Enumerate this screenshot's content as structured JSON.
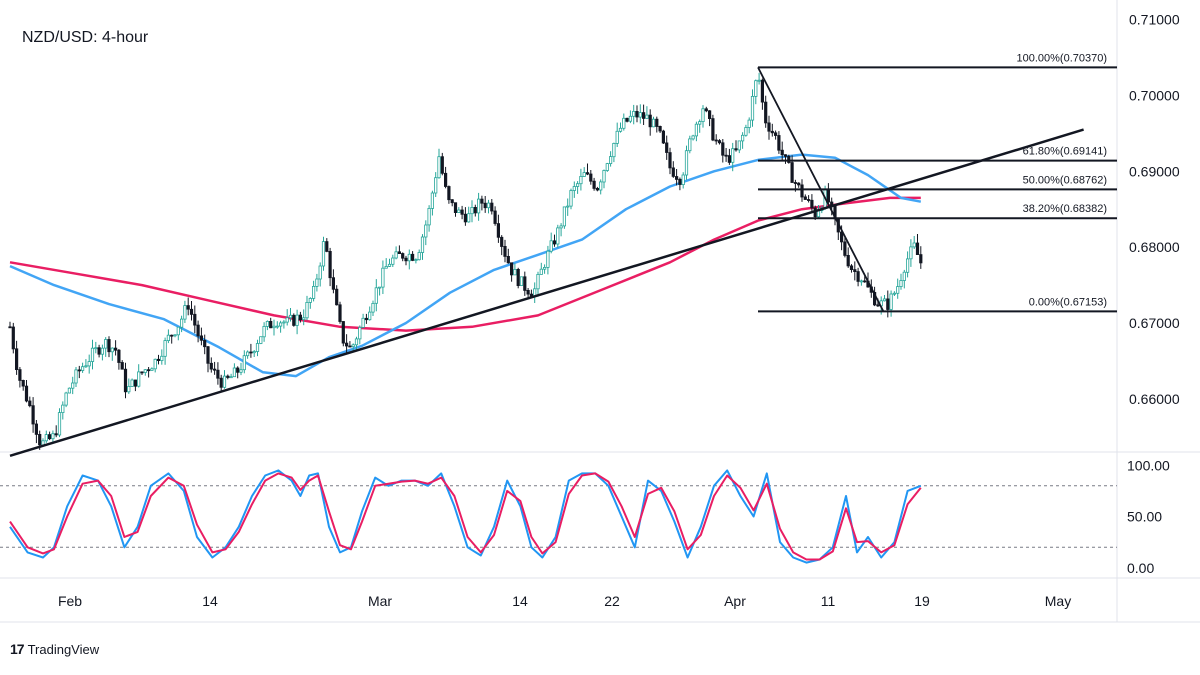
{
  "title": "NZD/USD: 4-hour",
  "brand": {
    "logo": "17",
    "name": "TradingView"
  },
  "colors": {
    "bull": "#26a69a",
    "bear": "#131722",
    "ma_fast": "#42a5f5",
    "ma_slow": "#e91e63",
    "stoch_k": "#2196f3",
    "stoch_d": "#e91e63",
    "trendline": "#131722",
    "grid_dash": "#787b86"
  },
  "chart_data": [
    {
      "type": "line",
      "title": "NZD/USD: 4-hour",
      "y_ticks": [
        "0.71000",
        "0.70000",
        "0.69000",
        "0.68000",
        "0.67000",
        "0.66000"
      ],
      "ylim": [
        0.653,
        0.711
      ],
      "x_ticks": [
        "Feb",
        "14",
        "Mar",
        "14",
        "22",
        "Apr",
        "11",
        "19",
        "May"
      ],
      "price_path": [
        [
          0,
          0.6695
        ],
        [
          4,
          0.663
        ],
        [
          9,
          0.659
        ],
        [
          14,
          0.654
        ],
        [
          20,
          0.655
        ],
        [
          26,
          0.661
        ],
        [
          32,
          0.664
        ],
        [
          38,
          0.666
        ],
        [
          43,
          0.6675
        ],
        [
          48,
          0.6665
        ],
        [
          53,
          0.661
        ],
        [
          60,
          0.6635
        ],
        [
          66,
          0.665
        ],
        [
          72,
          0.668
        ],
        [
          77,
          0.67
        ],
        [
          81,
          0.6725
        ],
        [
          86,
          0.668
        ],
        [
          91,
          0.664
        ],
        [
          97,
          0.662
        ],
        [
          103,
          0.6635
        ],
        [
          109,
          0.666
        ],
        [
          115,
          0.669
        ],
        [
          121,
          0.6705
        ],
        [
          126,
          0.67
        ],
        [
          133,
          0.671
        ],
        [
          138,
          0.674
        ],
        [
          143,
          0.681
        ],
        [
          147,
          0.674
        ],
        [
          151,
          0.668
        ],
        [
          155,
          0.6665
        ],
        [
          160,
          0.67
        ],
        [
          166,
          0.674
        ],
        [
          172,
          0.678
        ],
        [
          178,
          0.679
        ],
        [
          185,
          0.679
        ],
        [
          190,
          0.684
        ],
        [
          195,
          0.692
        ],
        [
          199,
          0.686
        ],
        [
          204,
          0.6845
        ],
        [
          209,
          0.684
        ],
        [
          214,
          0.686
        ],
        [
          219,
          0.6855
        ],
        [
          224,
          0.68
        ],
        [
          228,
          0.677
        ],
        [
          233,
          0.675
        ],
        [
          238,
          0.674
        ],
        [
          243,
          0.678
        ],
        [
          249,
          0.682
        ],
        [
          255,
          0.687
        ],
        [
          261,
          0.6895
        ],
        [
          267,
          0.688
        ],
        [
          272,
          0.692
        ],
        [
          278,
          0.696
        ],
        [
          284,
          0.6975
        ],
        [
          290,
          0.697
        ],
        [
          295,
          0.695
        ],
        [
          300,
          0.6905
        ],
        [
          305,
          0.689
        ],
        [
          310,
          0.695
        ],
        [
          315,
          0.6985
        ],
        [
          320,
          0.6945
        ],
        [
          325,
          0.6915
        ],
        [
          330,
          0.6925
        ],
        [
          335,
          0.696
        ],
        [
          340,
          0.703
        ],
        [
          343,
          0.697
        ],
        [
          348,
          0.6945
        ],
        [
          352,
          0.6915
        ],
        [
          357,
          0.6885
        ],
        [
          361,
          0.6865
        ],
        [
          366,
          0.6845
        ],
        [
          371,
          0.687
        ],
        [
          375,
          0.683
        ],
        [
          379,
          0.6795
        ],
        [
          383,
          0.677
        ],
        [
          387,
          0.676
        ],
        [
          391,
          0.674
        ],
        [
          395,
          0.6725
        ],
        [
          399,
          0.6725
        ],
        [
          403,
          0.6745
        ],
        [
          407,
          0.678
        ],
        [
          411,
          0.68
        ],
        [
          414,
          0.678
        ]
      ],
      "series": [
        {
          "name": "",
          "values": [
            [
              0,
              0.6775
            ],
            [
              20,
              0.675
            ],
            [
              45,
              0.6725
            ],
            [
              70,
              0.6705
            ],
            [
              95,
              0.6668
            ],
            [
              115,
              0.6635
            ],
            [
              130,
              0.663
            ],
            [
              145,
              0.6655
            ],
            [
              160,
              0.667
            ],
            [
              180,
              0.67
            ],
            [
              200,
              0.674
            ],
            [
              220,
              0.677
            ],
            [
              240,
              0.679
            ],
            [
              260,
              0.681
            ],
            [
              280,
              0.685
            ],
            [
              300,
              0.688
            ],
            [
              320,
              0.69
            ],
            [
              340,
              0.6915
            ],
            [
              360,
              0.6922
            ],
            [
              375,
              0.6918
            ],
            [
              390,
              0.6895
            ],
            [
              405,
              0.6865
            ],
            [
              414,
              0.686
            ]
          ]
        },
        {
          "name": "",
          "values": [
            [
              0,
              0.678
            ],
            [
              30,
              0.6765
            ],
            [
              60,
              0.675
            ],
            [
              90,
              0.673
            ],
            [
              120,
              0.671
            ],
            [
              150,
              0.6695
            ],
            [
              180,
              0.669
            ],
            [
              210,
              0.6695
            ],
            [
              240,
              0.671
            ],
            [
              270,
              0.6745
            ],
            [
              300,
              0.678
            ],
            [
              320,
              0.681
            ],
            [
              340,
              0.6835
            ],
            [
              360,
              0.685
            ],
            [
              380,
              0.6858
            ],
            [
              400,
              0.6865
            ],
            [
              414,
              0.6865
            ]
          ]
        }
      ],
      "trendlines": [
        {
          "from": [
            0,
            0.6525
          ],
          "to": [
            488,
            0.6955
          ]
        },
        {
          "from": [
            340,
            0.7037
          ],
          "to": [
            397,
            0.67153
          ]
        }
      ],
      "fibonacci": {
        "x_start": 340,
        "levels": [
          {
            "label": "100.00%(0.70370)",
            "price": 0.7037
          },
          {
            "label": "61.80%(0.69141)",
            "price": 0.69141
          },
          {
            "label": "50.00%(0.68762)",
            "price": 0.68762
          },
          {
            "label": "38.20%(0.68382)",
            "price": 0.68382
          },
          {
            "label": "0.00%(0.67153)",
            "price": 0.67153
          }
        ]
      }
    },
    {
      "type": "line",
      "title": "",
      "y_ticks": [
        "100.00",
        "50.00",
        "0.00"
      ],
      "ylim": [
        -10,
        110
      ],
      "levels": [
        80,
        20
      ],
      "stoch_k": [
        [
          0,
          40
        ],
        [
          8,
          15
        ],
        [
          15,
          10
        ],
        [
          20,
          20
        ],
        [
          26,
          60
        ],
        [
          33,
          90
        ],
        [
          40,
          85
        ],
        [
          46,
          60
        ],
        [
          52,
          20
        ],
        [
          58,
          40
        ],
        [
          64,
          80
        ],
        [
          72,
          92
        ],
        [
          79,
          75
        ],
        [
          85,
          30
        ],
        [
          92,
          10
        ],
        [
          98,
          20
        ],
        [
          104,
          40
        ],
        [
          110,
          70
        ],
        [
          116,
          90
        ],
        [
          122,
          95
        ],
        [
          128,
          85
        ],
        [
          132,
          70
        ],
        [
          136,
          90
        ],
        [
          140,
          92
        ],
        [
          145,
          40
        ],
        [
          150,
          15
        ],
        [
          155,
          20
        ],
        [
          160,
          55
        ],
        [
          166,
          88
        ],
        [
          172,
          80
        ],
        [
          178,
          85
        ],
        [
          184,
          85
        ],
        [
          190,
          80
        ],
        [
          196,
          92
        ],
        [
          202,
          60
        ],
        [
          208,
          20
        ],
        [
          214,
          12
        ],
        [
          220,
          40
        ],
        [
          226,
          85
        ],
        [
          232,
          60
        ],
        [
          237,
          20
        ],
        [
          242,
          10
        ],
        [
          248,
          30
        ],
        [
          254,
          85
        ],
        [
          260,
          92
        ],
        [
          266,
          92
        ],
        [
          272,
          80
        ],
        [
          278,
          50
        ],
        [
          284,
          20
        ],
        [
          290,
          85
        ],
        [
          296,
          75
        ],
        [
          302,
          45
        ],
        [
          308,
          10
        ],
        [
          314,
          40
        ],
        [
          320,
          80
        ],
        [
          326,
          95
        ],
        [
          332,
          70
        ],
        [
          338,
          50
        ],
        [
          344,
          92
        ],
        [
          350,
          25
        ],
        [
          356,
          10
        ],
        [
          362,
          5
        ],
        [
          368,
          8
        ],
        [
          374,
          20
        ],
        [
          380,
          70
        ],
        [
          385,
          15
        ],
        [
          390,
          30
        ],
        [
          396,
          10
        ],
        [
          402,
          25
        ],
        [
          408,
          75
        ],
        [
          414,
          80
        ]
      ],
      "stoch_d": [
        [
          0,
          45
        ],
        [
          8,
          20
        ],
        [
          15,
          14
        ],
        [
          20,
          18
        ],
        [
          26,
          50
        ],
        [
          33,
          82
        ],
        [
          40,
          85
        ],
        [
          46,
          70
        ],
        [
          52,
          30
        ],
        [
          58,
          35
        ],
        [
          64,
          70
        ],
        [
          72,
          88
        ],
        [
          79,
          80
        ],
        [
          85,
          42
        ],
        [
          92,
          15
        ],
        [
          98,
          18
        ],
        [
          104,
          35
        ],
        [
          110,
          62
        ],
        [
          116,
          85
        ],
        [
          122,
          92
        ],
        [
          128,
          88
        ],
        [
          132,
          76
        ],
        [
          136,
          85
        ],
        [
          140,
          90
        ],
        [
          145,
          55
        ],
        [
          150,
          22
        ],
        [
          155,
          18
        ],
        [
          160,
          45
        ],
        [
          166,
          80
        ],
        [
          172,
          82
        ],
        [
          178,
          84
        ],
        [
          184,
          85
        ],
        [
          190,
          82
        ],
        [
          196,
          88
        ],
        [
          202,
          70
        ],
        [
          208,
          30
        ],
        [
          214,
          15
        ],
        [
          220,
          32
        ],
        [
          226,
          75
        ],
        [
          232,
          65
        ],
        [
          237,
          30
        ],
        [
          242,
          14
        ],
        [
          248,
          25
        ],
        [
          254,
          72
        ],
        [
          260,
          90
        ],
        [
          266,
          92
        ],
        [
          272,
          84
        ],
        [
          278,
          60
        ],
        [
          284,
          30
        ],
        [
          290,
          72
        ],
        [
          296,
          78
        ],
        [
          302,
          55
        ],
        [
          308,
          18
        ],
        [
          314,
          32
        ],
        [
          320,
          70
        ],
        [
          326,
          90
        ],
        [
          332,
          78
        ],
        [
          338,
          56
        ],
        [
          344,
          82
        ],
        [
          350,
          38
        ],
        [
          356,
          15
        ],
        [
          362,
          8
        ],
        [
          368,
          8
        ],
        [
          374,
          16
        ],
        [
          380,
          58
        ],
        [
          385,
          25
        ],
        [
          390,
          26
        ],
        [
          396,
          15
        ],
        [
          402,
          22
        ],
        [
          408,
          62
        ],
        [
          414,
          78
        ]
      ]
    }
  ]
}
